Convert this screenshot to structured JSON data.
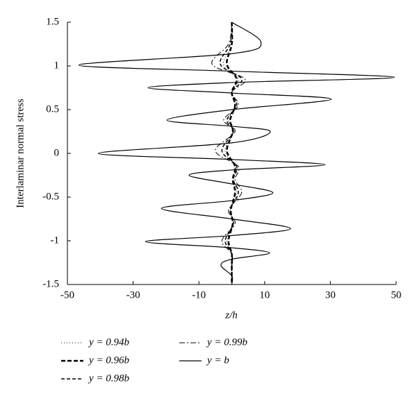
{
  "chart_data": {
    "type": "line",
    "xlabel": "z/h",
    "ylabel": "Interlaminar normal stress",
    "xlim": [
      -50,
      50
    ],
    "xticks": [
      -50,
      -30,
      -10,
      10,
      30,
      50
    ],
    "ylim": [
      -1.5,
      1.5
    ],
    "yticks": [
      -1.5,
      -1,
      -0.5,
      0,
      0.5,
      1,
      1.5
    ],
    "series": [
      {
        "name": "y = 0.94b",
        "color": "#000000",
        "dash": "1,3",
        "width": 1,
        "x": [
          0,
          0,
          -2.5,
          2,
          0,
          1,
          -1,
          0.5,
          -2,
          1,
          0.5,
          1.5,
          -0.5,
          0.5,
          -1.5,
          0,
          0,
          0
        ],
        "y": [
          1.5,
          1.25,
          1.02,
          0.85,
          0.7,
          0.55,
          0.38,
          0.25,
          0.03,
          -0.15,
          -0.3,
          -0.45,
          -0.65,
          -0.8,
          -1.0,
          -1.15,
          -1.3,
          -1.5
        ]
      },
      {
        "name": "y = 0.96b",
        "color": "#000000",
        "dash": "6,3",
        "width": 2.5,
        "x": [
          0,
          0,
          -1.5,
          1.5,
          0,
          1,
          -0.5,
          0.3,
          -1.5,
          1,
          0.3,
          1,
          -0.3,
          0.3,
          -1,
          0,
          0,
          0
        ],
        "y": [
          1.5,
          1.25,
          1.02,
          0.85,
          0.7,
          0.55,
          0.38,
          0.25,
          0.03,
          -0.15,
          -0.3,
          -0.45,
          -0.65,
          -0.8,
          -1.0,
          -1.15,
          -1.3,
          -1.5
        ]
      },
      {
        "name": "y = 0.98b",
        "color": "#000000",
        "dash": "5,3",
        "width": 1.5,
        "x": [
          0,
          -0.5,
          -3.5,
          3,
          0,
          1.5,
          -1.5,
          0.5,
          -3,
          1.5,
          0.5,
          2,
          -0.5,
          0.5,
          -2,
          0,
          0,
          0
        ],
        "y": [
          1.5,
          1.25,
          1.02,
          0.85,
          0.7,
          0.55,
          0.38,
          0.25,
          0.03,
          -0.15,
          -0.3,
          -0.45,
          -0.65,
          -0.8,
          -1.0,
          -1.15,
          -1.3,
          -1.5
        ]
      },
      {
        "name": "y = 0.99b",
        "color": "#000000",
        "dash": "8,3,2,3",
        "width": 1,
        "x": [
          0,
          -1,
          -6,
          4,
          0,
          2,
          -2.5,
          1,
          -5,
          2,
          1,
          3,
          -1,
          1,
          -3,
          0,
          0,
          0
        ],
        "y": [
          1.5,
          1.25,
          1.02,
          0.85,
          0.7,
          0.55,
          0.38,
          0.25,
          0.03,
          -0.15,
          -0.3,
          -0.45,
          -0.65,
          -0.8,
          -1.0,
          -1.15,
          -1.3,
          -1.5
        ]
      },
      {
        "name": "y = b",
        "color": "#000000",
        "dash": "none",
        "width": 1.2,
        "x": [
          0,
          8.9,
          0,
          -46.5,
          0,
          49.5,
          0,
          -25.5,
          0,
          30.3,
          0,
          -19.7,
          0,
          11.7,
          0,
          -40.6,
          0,
          28.4,
          0,
          -13,
          0,
          12.5,
          0,
          -21.4,
          0,
          17.9,
          0,
          -26.3,
          0,
          11.5,
          0,
          -3.3,
          0,
          0
        ],
        "y": [
          1.5,
          1.27,
          1.14,
          1.01,
          0.94,
          0.87,
          0.81,
          0.75,
          0.69,
          0.62,
          0.5,
          0.38,
          0.31,
          0.25,
          0.12,
          0,
          -0.07,
          -0.13,
          -0.19,
          -0.25,
          -0.35,
          -0.45,
          -0.54,
          -0.63,
          -0.75,
          -0.86,
          -0.94,
          -1.01,
          -1.08,
          -1.14,
          -1.21,
          -1.28,
          -1.4,
          -1.5
        ]
      }
    ]
  }
}
